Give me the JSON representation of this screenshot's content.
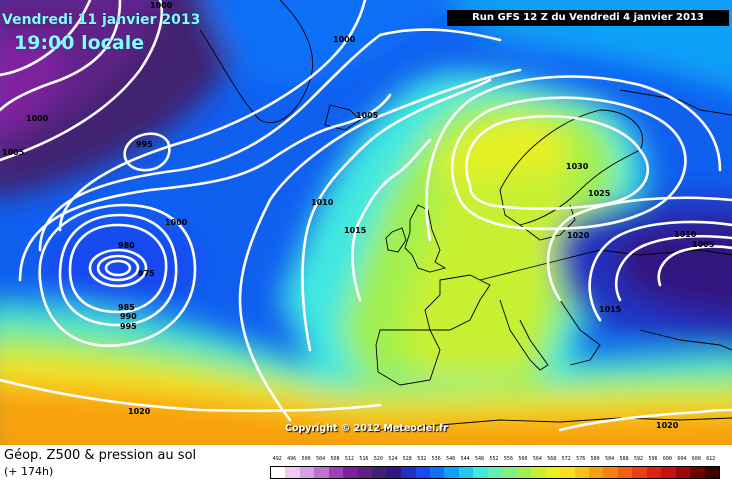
{
  "header": {
    "date": "Vendredi 11 janvier 2013",
    "time": "19:00 locale",
    "run": "Run GFS 12 Z du Vendredi 4 janvier 2013"
  },
  "copyright": "Copyright © 2012 Meteociel.fr",
  "legend": {
    "title": "Géop. Z500 & pression au sol",
    "subtitle": "(+ 174h)",
    "values": [
      "492",
      "496",
      "500",
      "504",
      "508",
      "512",
      "516",
      "520",
      "524",
      "528",
      "532",
      "536",
      "540",
      "544",
      "548",
      "552",
      "556",
      "560",
      "564",
      "568",
      "572",
      "576",
      "580",
      "584",
      "588",
      "592",
      "596",
      "600",
      "604",
      "608",
      "612"
    ],
    "colors": [
      "#ffffff",
      "#f0c8f0",
      "#d8a0e0",
      "#c070d0",
      "#a040b8",
      "#8020a0",
      "#602088",
      "#402070",
      "#301880",
      "#2030c0",
      "#1848f0",
      "#1070f8",
      "#10a0f8",
      "#20c8f0",
      "#40e8e0",
      "#60f0b0",
      "#80f080",
      "#a0f050",
      "#c8f030",
      "#e8f020",
      "#f8e020",
      "#f8c018",
      "#f8a010",
      "#f88010",
      "#f06010",
      "#e84010",
      "#e02010",
      "#c81010",
      "#a00808",
      "#700000",
      "#400000"
    ]
  },
  "isobars": [
    {
      "label": "1000"
    },
    {
      "label": "1000"
    },
    {
      "label": "1005"
    },
    {
      "label": "1000"
    },
    {
      "label": "995"
    },
    {
      "label": "1005"
    },
    {
      "label": "1010"
    },
    {
      "label": "1000"
    },
    {
      "label": "980"
    },
    {
      "label": "975"
    },
    {
      "label": "985"
    },
    {
      "label": "990"
    },
    {
      "label": "995"
    },
    {
      "label": "1015"
    },
    {
      "label": "1030"
    },
    {
      "label": "1025"
    },
    {
      "label": "1020"
    },
    {
      "label": "1010"
    },
    {
      "label": "1005"
    },
    {
      "label": "1015"
    },
    {
      "label": "1020"
    },
    {
      "label": "1020"
    }
  ]
}
